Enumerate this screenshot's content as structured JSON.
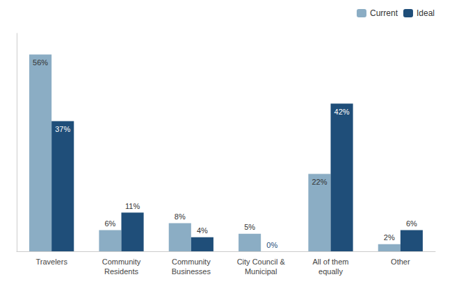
{
  "chart_data": {
    "type": "bar",
    "categories": [
      "Travelers",
      "Community\nResidents",
      "Community\nBusinesses",
      "City Council &\nMunicipal",
      "All of them\nequally",
      "Other"
    ],
    "series": [
      {
        "name": "Current",
        "color": "#8BADC4",
        "values": [
          56,
          6,
          8,
          5,
          22,
          2
        ],
        "value_labels": [
          "56%",
          "6%",
          "8%",
          "5%",
          "22%",
          "2%"
        ]
      },
      {
        "name": "Ideal",
        "color": "#1F4E79",
        "values": [
          37,
          11,
          4,
          0,
          42,
          6
        ],
        "value_labels": [
          "37%",
          "11%",
          "4%",
          "0%",
          "42%",
          "6%"
        ]
      }
    ],
    "ylim": [
      0,
      62
    ],
    "grid": false,
    "legend": "upper right",
    "data_labels": true,
    "tick_labels": "x"
  }
}
